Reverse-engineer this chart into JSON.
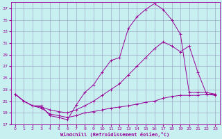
{
  "xlabel": "Windchill (Refroidissement éolien,°C)",
  "bg_color": "#c8f0f0",
  "grid_color": "#9999bb",
  "line_color": "#990099",
  "xlim": [
    -0.5,
    23.5
  ],
  "ylim": [
    17,
    38
  ],
  "yticks": [
    17,
    19,
    21,
    23,
    25,
    27,
    29,
    31,
    33,
    35,
    37
  ],
  "xticks": [
    0,
    1,
    2,
    3,
    4,
    5,
    6,
    7,
    8,
    9,
    10,
    11,
    12,
    13,
    14,
    15,
    16,
    17,
    18,
    19,
    20,
    21,
    22,
    23
  ],
  "curve1_x": [
    0,
    1,
    2,
    3,
    4,
    5,
    6,
    7,
    8,
    9,
    10,
    11,
    12,
    13,
    14,
    15,
    16,
    17,
    18,
    19,
    20,
    21,
    22,
    23
  ],
  "curve1_y": [
    22.2,
    21.0,
    20.2,
    20.2,
    18.5,
    18.2,
    17.8,
    20.3,
    22.5,
    23.8,
    26.0,
    28.0,
    28.5,
    33.5,
    35.5,
    36.8,
    37.8,
    36.8,
    35.0,
    32.5,
    22.5,
    22.5,
    22.5,
    22.2
  ],
  "curve2_x": [
    0,
    1,
    2,
    3,
    4,
    5,
    6,
    7,
    8,
    9,
    10,
    11,
    12,
    13,
    14,
    15,
    16,
    17,
    18,
    19,
    20,
    21,
    22,
    23
  ],
  "curve2_y": [
    22.2,
    21.0,
    20.2,
    20.0,
    19.5,
    19.2,
    19.0,
    19.5,
    20.2,
    21.0,
    22.0,
    23.0,
    24.0,
    25.5,
    27.0,
    28.5,
    30.0,
    31.2,
    30.5,
    29.5,
    30.5,
    26.0,
    22.2,
    22.0
  ],
  "curve3_x": [
    0,
    1,
    2,
    3,
    4,
    5,
    6,
    7,
    8,
    9,
    10,
    11,
    12,
    13,
    14,
    15,
    16,
    17,
    18,
    19,
    20,
    21,
    22,
    23
  ],
  "curve3_y": [
    22.2,
    21.0,
    20.2,
    19.8,
    18.8,
    18.5,
    18.2,
    18.5,
    19.0,
    19.2,
    19.5,
    19.8,
    20.0,
    20.2,
    20.5,
    20.8,
    21.0,
    21.5,
    21.8,
    22.0,
    22.0,
    22.0,
    22.2,
    22.2
  ]
}
